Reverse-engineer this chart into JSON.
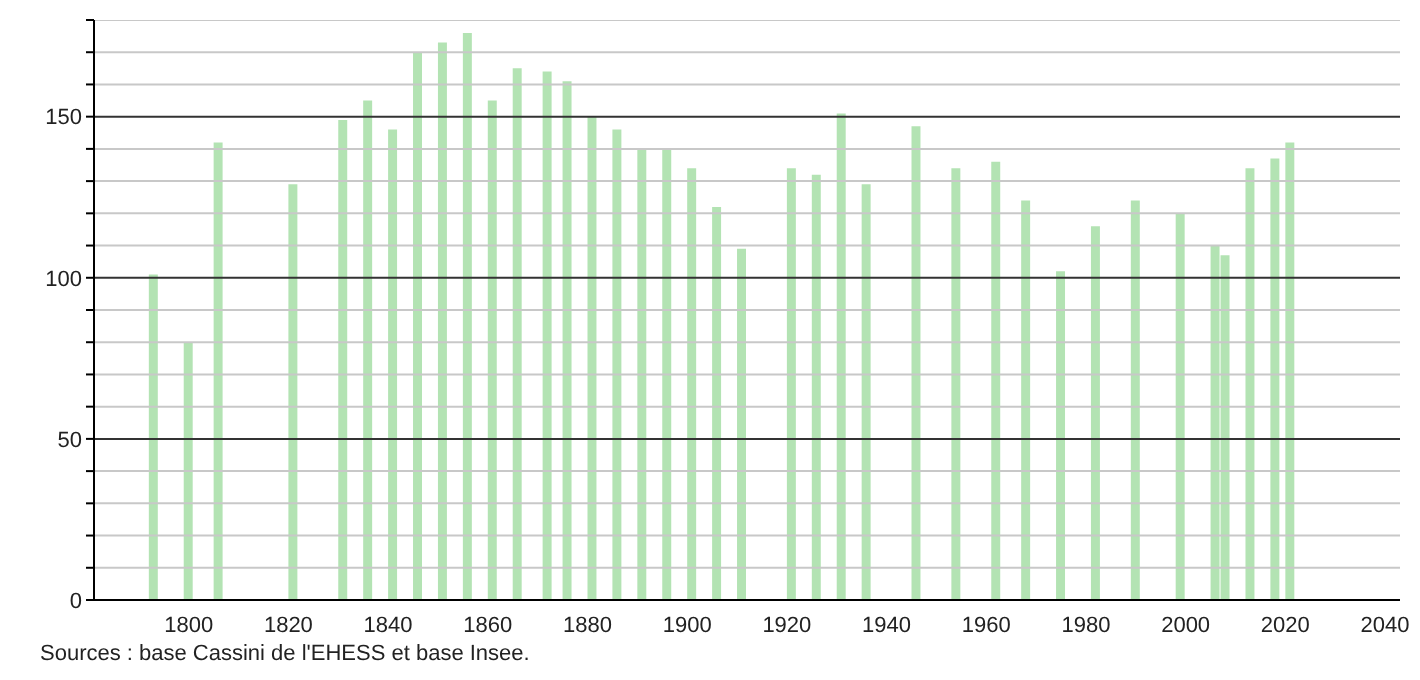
{
  "chart_data": {
    "type": "bar",
    "x": [
      1793,
      1800,
      1806,
      1821,
      1831,
      1836,
      1841,
      1846,
      1851,
      1856,
      1861,
      1866,
      1872,
      1876,
      1881,
      1886,
      1891,
      1896,
      1901,
      1906,
      1911,
      1921,
      1926,
      1931,
      1936,
      1946,
      1954,
      1962,
      1968,
      1975,
      1982,
      1990,
      1999,
      2006,
      2008,
      2013,
      2018,
      2021
    ],
    "values": [
      101,
      80,
      142,
      129,
      149,
      155,
      146,
      170,
      173,
      176,
      155,
      165,
      164,
      161,
      150,
      146,
      140,
      140,
      134,
      122,
      109,
      134,
      132,
      151,
      129,
      147,
      134,
      136,
      124,
      102,
      116,
      124,
      120,
      110,
      107,
      134,
      137,
      142
    ],
    "color": "#b3e3b3",
    "xlim": [
      1781,
      2043
    ],
    "xticks": [
      1800,
      1820,
      1840,
      1860,
      1880,
      1900,
      1920,
      1940,
      1960,
      1980,
      2000,
      2020,
      2040
    ],
    "ylim": [
      0,
      180
    ],
    "yticks": [
      0,
      {
        "value": 10,
        "label": null
      },
      {
        "value": 20,
        "label": null
      },
      {
        "value": 30,
        "label": null
      },
      {
        "value": 40,
        "label": null
      },
      50,
      {
        "value": 60,
        "label": null
      },
      {
        "value": 70,
        "label": null
      },
      {
        "value": 80,
        "label": null
      },
      {
        "value": 90,
        "label": null
      },
      100,
      {
        "value": 110,
        "label": null
      },
      {
        "value": 120,
        "label": null
      },
      {
        "value": 130,
        "label": null
      },
      {
        "value": 140,
        "label": null
      },
      150,
      {
        "value": 160,
        "label": null
      },
      {
        "value": 170,
        "label": null
      },
      {
        "value": 180,
        "label": null
      }
    ],
    "grid": "y",
    "annotations": [
      "Sources : base Cassini de l'EHESS et base Insee."
    ]
  }
}
